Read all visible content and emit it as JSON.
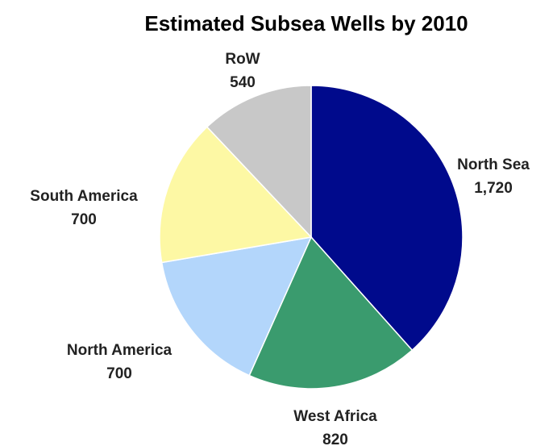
{
  "chart_data": {
    "type": "pie",
    "title": "Estimated Subsea Wells by 2010",
    "slices": [
      {
        "label": "North Sea",
        "value": 1720,
        "value_label": "1,720",
        "color": "#000a8c"
      },
      {
        "label": "West Africa",
        "value": 820,
        "value_label": "820",
        "color": "#3a9b6e"
      },
      {
        "label": "North America",
        "value": 700,
        "value_label": "700",
        "color": "#b3d6fb"
      },
      {
        "label": "South America",
        "value": 700,
        "value_label": "700",
        "color": "#fdf8a4"
      },
      {
        "label": "RoW",
        "value": 540,
        "value_label": "540",
        "color": "#c8c8c8"
      }
    ],
    "start": "12 o'clock",
    "direction": "clockwise",
    "legend": "none"
  }
}
